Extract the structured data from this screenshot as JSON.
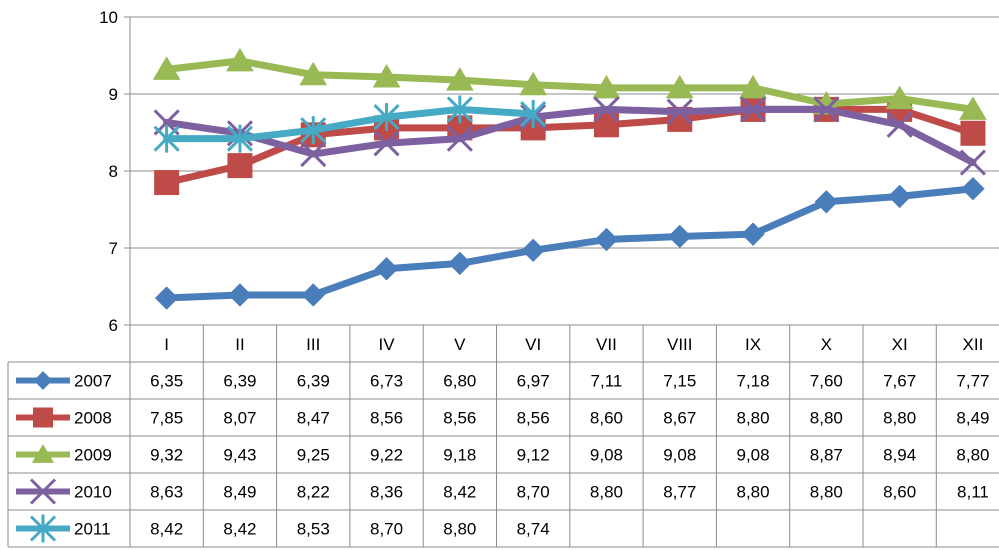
{
  "chart_data": {
    "type": "line",
    "title": "",
    "xlabel": "",
    "ylabel": "",
    "ylim": [
      6,
      10
    ],
    "yticks": [
      "6",
      "7",
      "8",
      "9",
      "10"
    ],
    "grid": true,
    "legend": "table-left",
    "categories": [
      "I",
      "II",
      "III",
      "IV",
      "V",
      "VI",
      "VII",
      "VIII",
      "IX",
      "X",
      "XI",
      "XII"
    ],
    "series": [
      {
        "name": "2007",
        "color": "#4a7ebb",
        "marker": "diamond",
        "values": [
          6.35,
          6.39,
          6.39,
          6.73,
          6.8,
          6.97,
          7.11,
          7.15,
          7.18,
          7.6,
          7.67,
          7.77
        ],
        "labels": [
          "6,35",
          "6,39",
          "6,39",
          "6,73",
          "6,80",
          "6,97",
          "7,11",
          "7,15",
          "7,18",
          "7,60",
          "7,67",
          "7,77"
        ]
      },
      {
        "name": "2008",
        "color": "#be4b48",
        "marker": "square",
        "values": [
          7.85,
          8.07,
          8.47,
          8.56,
          8.56,
          8.56,
          8.6,
          8.67,
          8.8,
          8.8,
          8.8,
          8.49
        ],
        "labels": [
          "7,85",
          "8,07",
          "8,47",
          "8,56",
          "8,56",
          "8,56",
          "8,60",
          "8,67",
          "8,80",
          "8,80",
          "8,80",
          "8,49"
        ]
      },
      {
        "name": "2009",
        "color": "#98b954",
        "marker": "triangle",
        "values": [
          9.32,
          9.43,
          9.25,
          9.22,
          9.18,
          9.12,
          9.08,
          9.08,
          9.08,
          8.87,
          8.94,
          8.8
        ],
        "labels": [
          "9,32",
          "9,43",
          "9,25",
          "9,22",
          "9,18",
          "9,12",
          "9,08",
          "9,08",
          "9,08",
          "8,87",
          "8,94",
          "8,80"
        ]
      },
      {
        "name": "2010",
        "color": "#7d60a0",
        "marker": "x",
        "values": [
          8.63,
          8.49,
          8.22,
          8.36,
          8.42,
          8.7,
          8.8,
          8.77,
          8.8,
          8.8,
          8.6,
          8.11
        ],
        "labels": [
          "8,63",
          "8,49",
          "8,22",
          "8,36",
          "8,42",
          "8,70",
          "8,80",
          "8,77",
          "8,80",
          "8,80",
          "8,60",
          "8,11"
        ]
      },
      {
        "name": "2011",
        "color": "#46aac5",
        "marker": "star",
        "values": [
          8.42,
          8.42,
          8.53,
          8.7,
          8.8,
          8.74,
          null,
          null,
          null,
          null,
          null,
          null
        ],
        "labels": [
          "8,42",
          "8,42",
          "8,53",
          "8,70",
          "8,80",
          "8,74",
          "",
          "",
          "",
          "",
          "",
          ""
        ]
      }
    ]
  }
}
